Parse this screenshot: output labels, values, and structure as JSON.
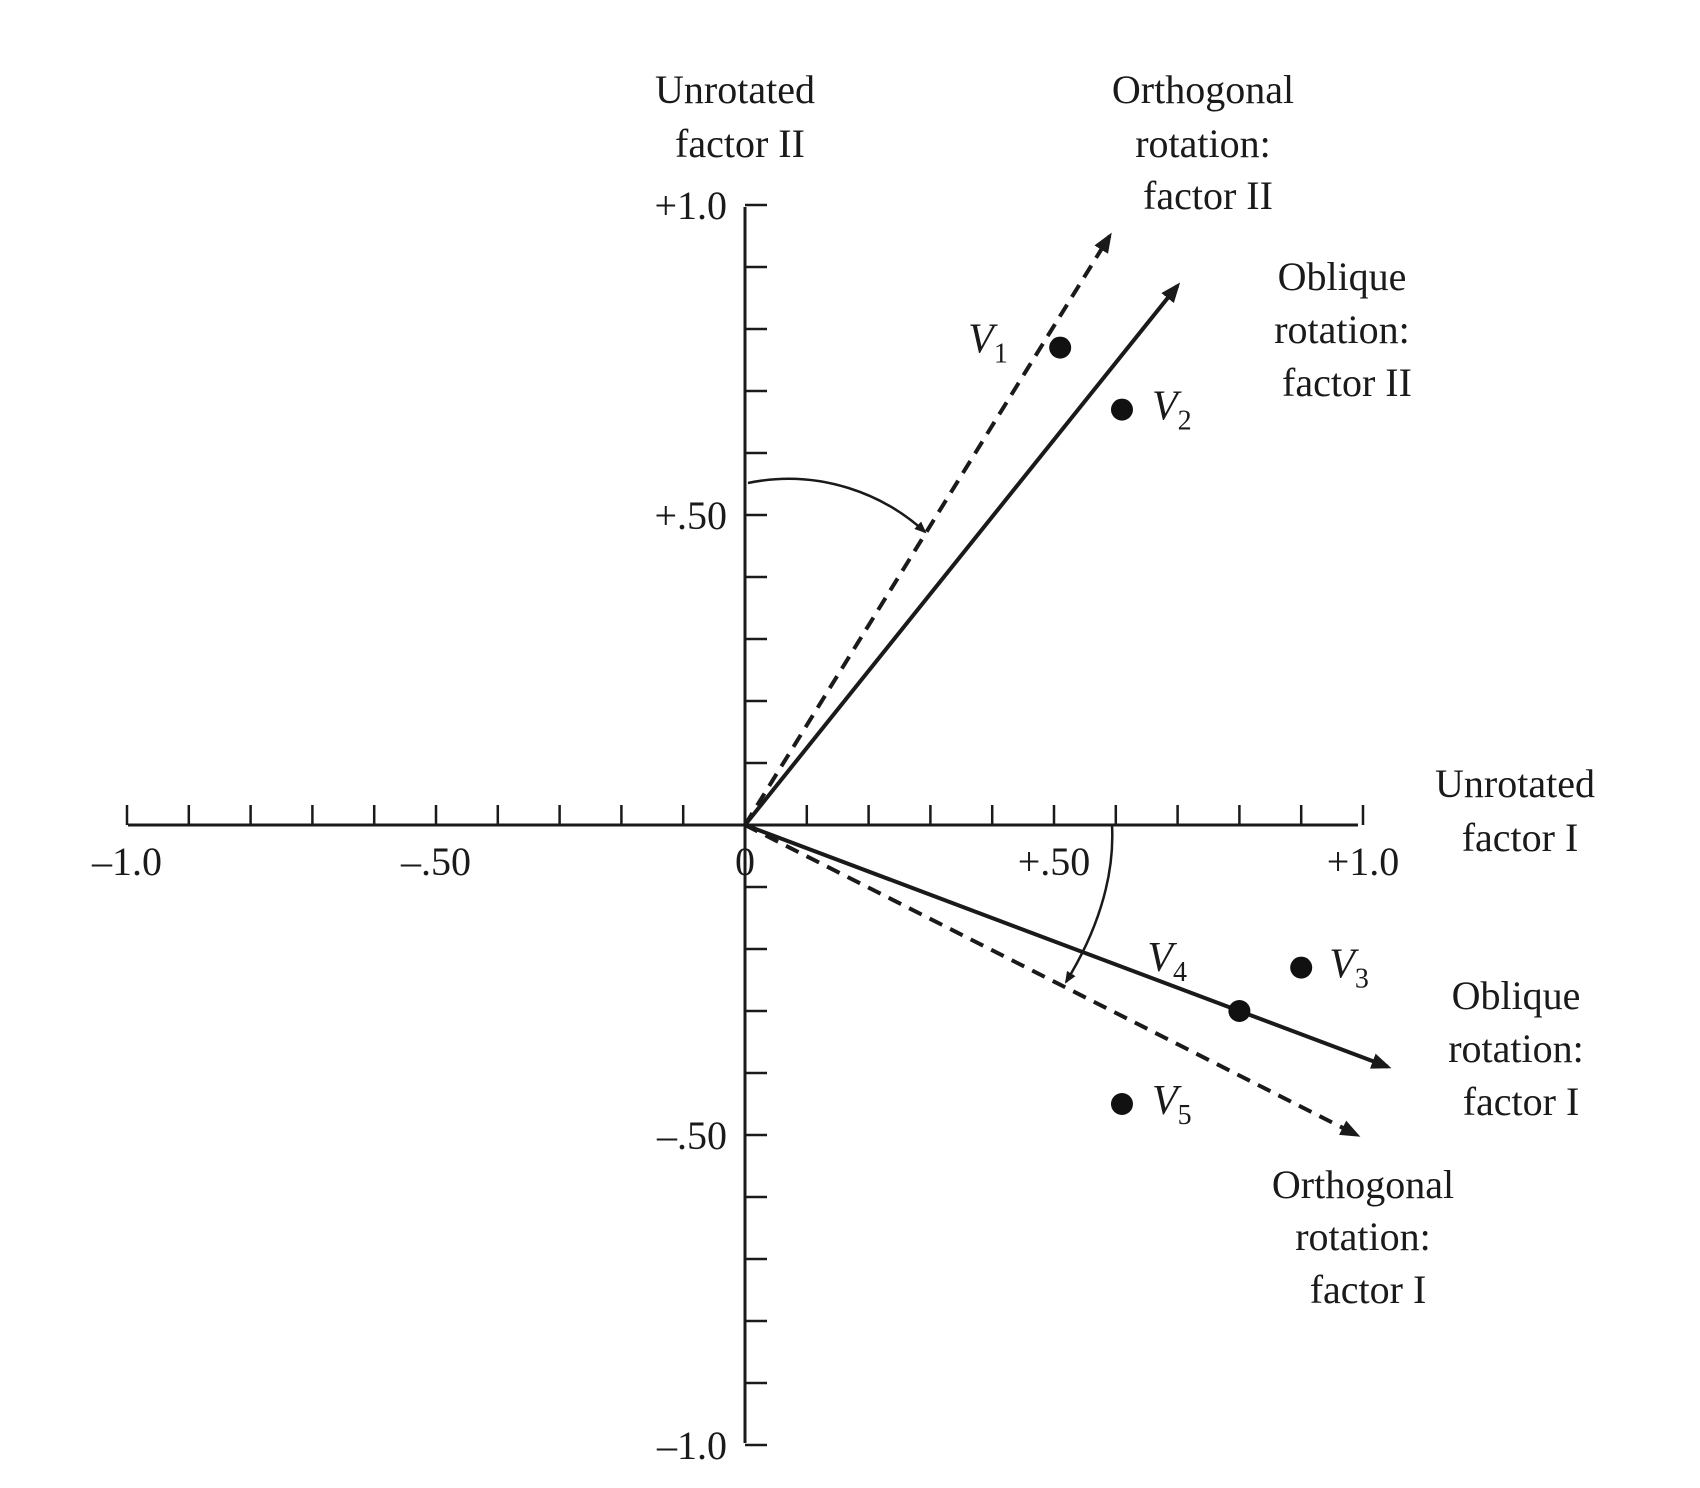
{
  "chart_data": {
    "type": "scatter",
    "xlim": [
      -1.0,
      1.0
    ],
    "ylim": [
      -1.0,
      1.0
    ],
    "x_tick_labels": [
      {
        "value": -1.0,
        "label": "–1.0"
      },
      {
        "value": -0.5,
        "label": "–.50"
      },
      {
        "value": 0,
        "label": "0"
      },
      {
        "value": 0.5,
        "label": "+.50"
      },
      {
        "value": 1.0,
        "label": "+1.0"
      }
    ],
    "y_tick_labels": [
      {
        "value": 1.0,
        "label": "+1.0"
      },
      {
        "value": 0.5,
        "label": "+.50"
      },
      {
        "value": -0.5,
        "label": "–.50"
      },
      {
        "value": -1.0,
        "label": "–1.0"
      }
    ],
    "minor_tick_step": 0.1,
    "grid": false,
    "axis_labels": {
      "x": [
        "Unrotated",
        "factor I"
      ],
      "y": [
        "Unrotated",
        "factor II"
      ]
    },
    "points": [
      {
        "name": "V",
        "sub": "1",
        "x": 0.51,
        "y": 0.77
      },
      {
        "name": "V",
        "sub": "2",
        "x": 0.61,
        "y": 0.67
      },
      {
        "name": "V",
        "sub": "3",
        "x": 0.9,
        "y": -0.23
      },
      {
        "name": "V",
        "sub": "4",
        "x": 0.8,
        "y": -0.3
      },
      {
        "name": "V",
        "sub": "5",
        "x": 0.61,
        "y": -0.45
      }
    ],
    "rotated_axes": [
      {
        "key": "orth2",
        "style": "dashed",
        "end": [
          0.59,
          0.95
        ],
        "label": [
          "Orthogonal",
          "rotation:",
          "factor II"
        ]
      },
      {
        "key": "obl2",
        "style": "solid",
        "end": [
          0.7,
          0.87
        ],
        "label": [
          "Oblique",
          "rotation:",
          "factor II"
        ]
      },
      {
        "key": "obl1",
        "style": "solid",
        "end": [
          1.04,
          -0.39
        ],
        "label": [
          "Oblique",
          "rotation:",
          "factor I"
        ]
      },
      {
        "key": "orth1",
        "style": "dashed",
        "end": [
          0.99,
          -0.5
        ],
        "label": [
          "Orthogonal",
          "rotation:",
          "factor I"
        ]
      }
    ]
  }
}
